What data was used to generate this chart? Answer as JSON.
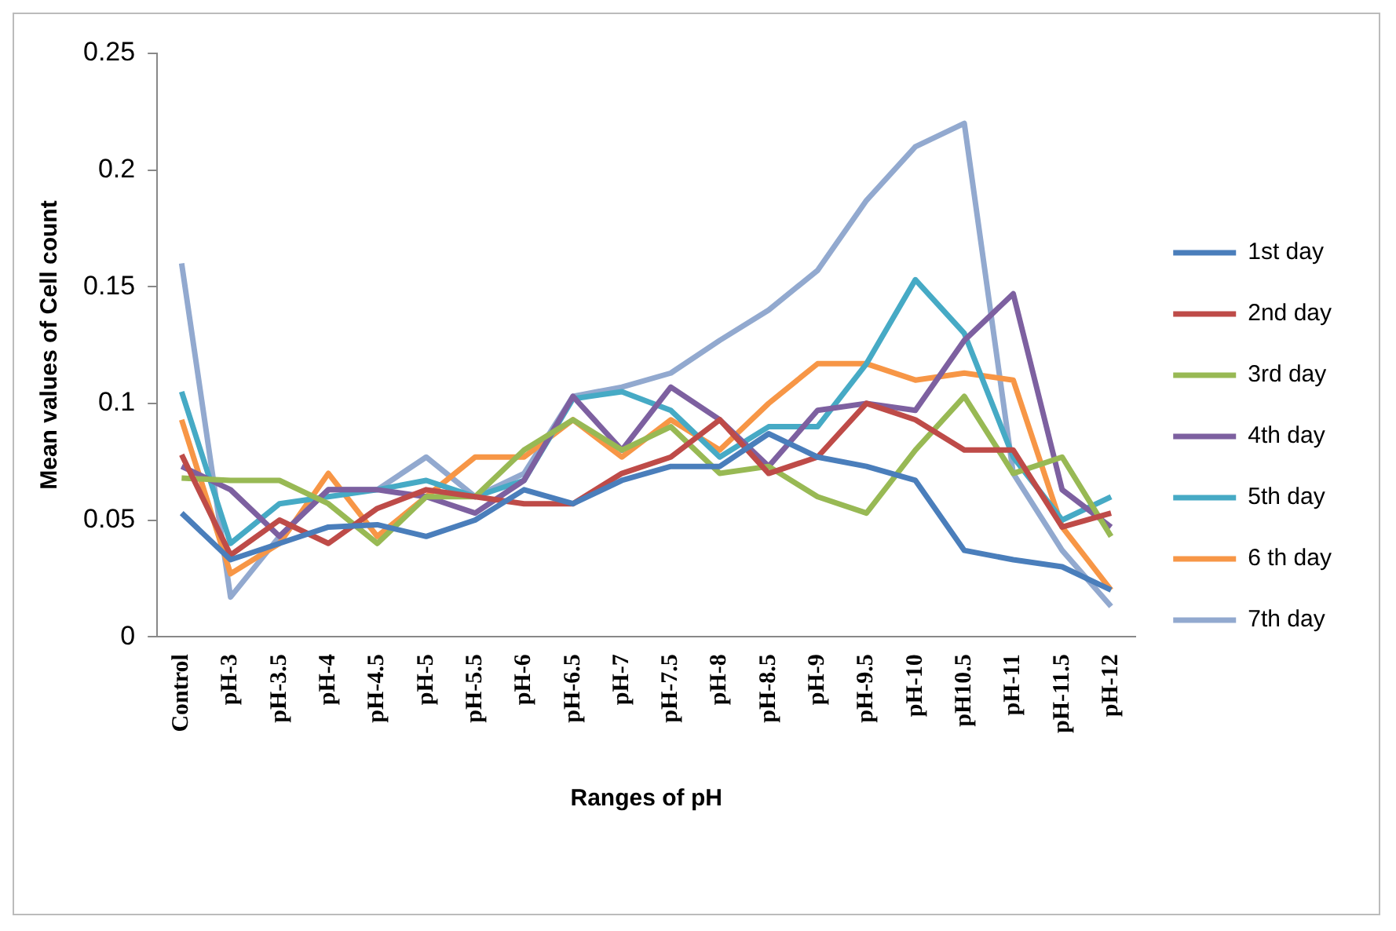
{
  "chart_data": {
    "type": "line",
    "xlabel": "Ranges of pH",
    "ylabel": "Mean values of Cell count",
    "categories": [
      "Control",
      "pH-3",
      "pH-3.5",
      "pH-4",
      "pH-4.5",
      "pH-5",
      "pH-5.5",
      "pH-6",
      "pH-6.5",
      "pH-7",
      "pH-7.5",
      "pH-8",
      "pH-8.5",
      "pH-9",
      "pH-9.5",
      "pH-10",
      "pH10.5",
      "pH-11",
      "pH-11.5",
      "pH-12"
    ],
    "series": [
      {
        "name": "1st day",
        "color": "#4a7ebb",
        "values": [
          0.053,
          0.033,
          0.04,
          0.047,
          0.048,
          0.043,
          0.05,
          0.063,
          0.057,
          0.067,
          0.073,
          0.073,
          0.087,
          0.077,
          0.073,
          0.067,
          0.037,
          0.033,
          0.03,
          0.02
        ]
      },
      {
        "name": "2nd day",
        "color": "#be4b48",
        "values": [
          0.078,
          0.035,
          0.05,
          0.04,
          0.055,
          0.063,
          0.06,
          0.057,
          0.057,
          0.07,
          0.077,
          0.093,
          0.07,
          0.077,
          0.1,
          0.093,
          0.08,
          0.08,
          0.047,
          0.053
        ]
      },
      {
        "name": "3rd day",
        "color": "#98b954",
        "values": [
          0.068,
          0.067,
          0.067,
          0.057,
          0.04,
          0.06,
          0.06,
          0.08,
          0.093,
          0.08,
          0.09,
          0.07,
          0.073,
          0.06,
          0.053,
          0.08,
          0.103,
          0.07,
          0.077,
          0.043
        ]
      },
      {
        "name": "4th day",
        "color": "#7d60a0",
        "values": [
          0.073,
          0.063,
          0.043,
          0.063,
          0.063,
          0.06,
          0.053,
          0.067,
          0.103,
          0.08,
          0.107,
          0.093,
          0.073,
          0.097,
          0.1,
          0.097,
          0.127,
          0.147,
          0.063,
          0.047
        ]
      },
      {
        "name": "5th day",
        "color": "#46aac5",
        "values": [
          0.105,
          0.04,
          0.057,
          0.06,
          0.063,
          0.067,
          0.06,
          0.067,
          0.102,
          0.105,
          0.097,
          0.077,
          0.09,
          0.09,
          0.117,
          0.153,
          0.13,
          0.077,
          0.05,
          0.06
        ]
      },
      {
        "name": "6 th day",
        "color": "#f79646",
        "values": [
          0.093,
          0.027,
          0.04,
          0.07,
          0.043,
          0.06,
          0.077,
          0.077,
          0.093,
          0.077,
          0.093,
          0.08,
          0.1,
          0.117,
          0.117,
          0.11,
          0.113,
          0.11,
          0.047,
          0.02
        ]
      },
      {
        "name": "7th day",
        "color": "#92a9cf",
        "values": [
          0.16,
          0.017,
          0.043,
          0.063,
          0.063,
          0.077,
          0.06,
          0.07,
          0.103,
          0.107,
          0.113,
          0.127,
          0.14,
          0.157,
          0.187,
          0.21,
          0.22,
          0.07,
          0.037,
          0.013
        ]
      }
    ],
    "ylim": [
      0,
      0.25
    ],
    "yticks": [
      0,
      0.05,
      0.1,
      0.15,
      0.2,
      0.25
    ],
    "grid": false,
    "legend": "right",
    "marker": "none",
    "line_style": "solid"
  }
}
